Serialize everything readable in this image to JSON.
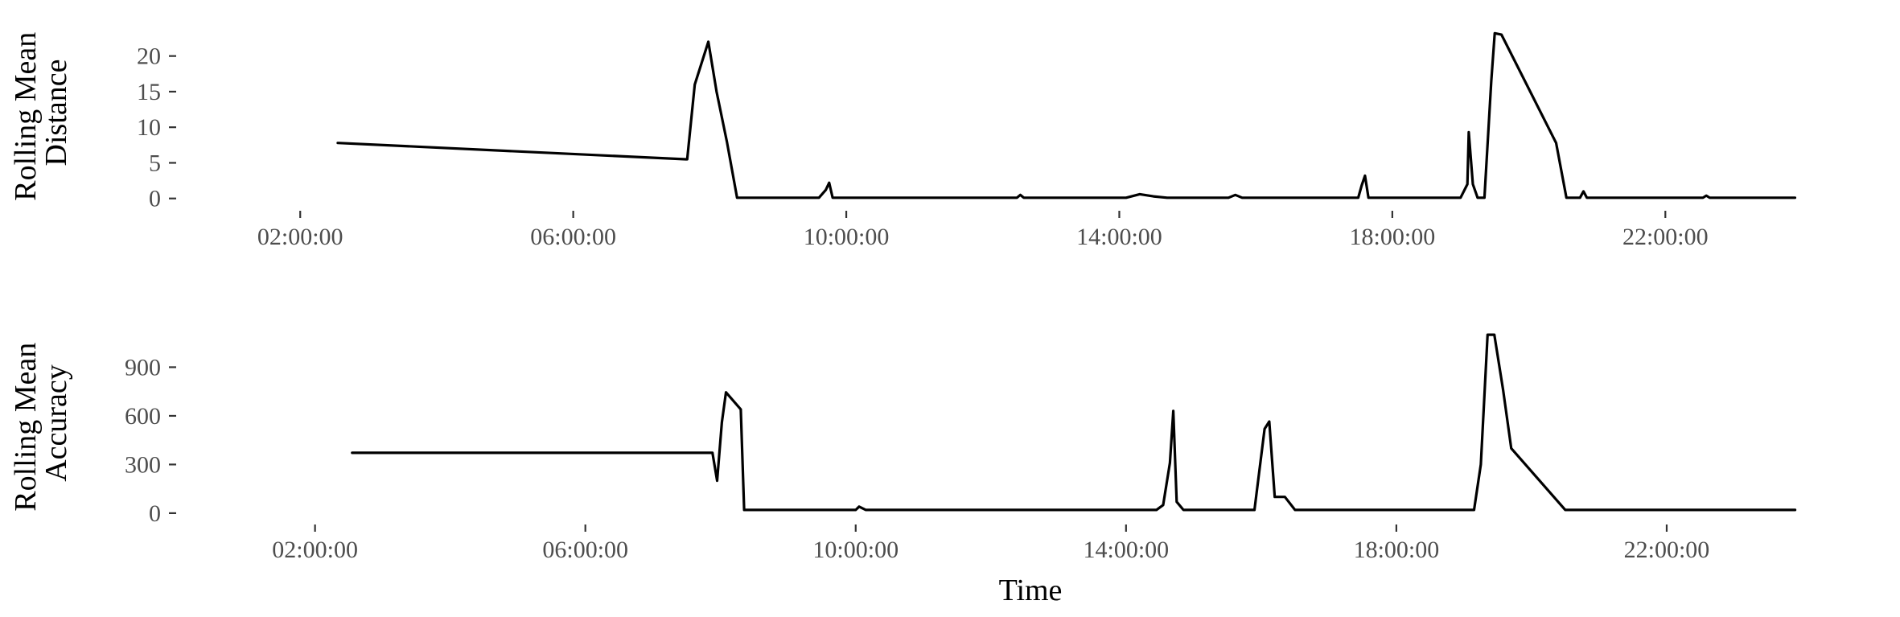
{
  "chart_data": [
    {
      "type": "line",
      "ylabel_lines": [
        "Rolling Mean",
        "Distance"
      ],
      "xlabel": "",
      "grid": false,
      "x_ticks": [
        "02:00:00",
        "06:00:00",
        "10:00:00",
        "14:00:00",
        "18:00:00",
        "22:00:00"
      ],
      "x_tick_hours": [
        2,
        6,
        10,
        14,
        18,
        22
      ],
      "xlim_hours": [
        0.1,
        24
      ],
      "ylim": [
        -1.5,
        23.8
      ],
      "y_ticks": [
        0,
        5,
        10,
        15,
        20
      ],
      "y_tick_labels": [
        "0",
        "5",
        "10",
        "15",
        "20"
      ],
      "series": [
        {
          "x_hours": [
            2.55,
            7.65,
            7.67,
            7.78,
            7.98,
            8.1,
            8.25,
            8.4,
            9.6,
            9.7,
            9.75,
            9.8,
            12.5,
            12.55,
            12.6,
            14.1,
            14.3,
            14.5,
            14.7,
            15.6,
            15.7,
            15.8,
            17.5,
            17.55,
            17.6,
            17.65,
            19.0,
            19.1,
            19.12,
            19.18,
            19.25,
            19.3,
            19.35,
            19.45,
            19.5,
            19.6,
            20.4,
            20.55,
            20.75,
            20.8,
            20.85,
            22.55,
            22.6,
            22.65,
            23.9
          ],
          "y": [
            7.8,
            5.5,
            5.5,
            16.0,
            22.0,
            15.0,
            8.0,
            0.1,
            0.1,
            1.2,
            2.2,
            0.1,
            0.1,
            0.5,
            0.1,
            0.1,
            0.6,
            0.3,
            0.1,
            0.1,
            0.5,
            0.1,
            0.1,
            1.8,
            3.2,
            0.1,
            0.1,
            2.0,
            9.3,
            2.0,
            0.1,
            0.1,
            0.1,
            16.5,
            23.2,
            23.0,
            7.8,
            0.1,
            0.1,
            1.0,
            0.1,
            0.1,
            0.4,
            0.1,
            0.1
          ]
        }
      ]
    },
    {
      "type": "line",
      "ylabel_lines": [
        "Rolling Mean",
        "Accuracy"
      ],
      "xlabel": "Time",
      "grid": false,
      "x_ticks": [
        "02:00:00",
        "06:00:00",
        "10:00:00",
        "14:00:00",
        "18:00:00",
        "22:00:00"
      ],
      "x_tick_hours": [
        2,
        6,
        10,
        14,
        18,
        22
      ],
      "xlim_hours": [
        0.1,
        24
      ],
      "ylim": [
        -60,
        1180
      ],
      "y_ticks": [
        0,
        300,
        600,
        900
      ],
      "y_tick_labels": [
        "0",
        "300",
        "600",
        "900"
      ],
      "series": [
        {
          "x_hours": [
            2.55,
            7.88,
            7.95,
            8.02,
            8.08,
            8.3,
            8.35,
            8.45,
            10.0,
            10.05,
            10.15,
            10.3,
            14.45,
            14.55,
            14.65,
            14.7,
            14.75,
            14.85,
            15.9,
            16.05,
            16.12,
            16.2,
            16.35,
            16.5,
            19.15,
            19.25,
            19.35,
            19.45,
            19.58,
            19.7,
            20.5,
            20.6,
            23.9
          ],
          "y": [
            372,
            372,
            200,
            560,
            745,
            640,
            20,
            20,
            20,
            40,
            20,
            20,
            20,
            50,
            310,
            630,
            70,
            20,
            20,
            520,
            565,
            100,
            100,
            20,
            20,
            300,
            1100,
            1100,
            760,
            400,
            20,
            20,
            20
          ]
        }
      ]
    }
  ]
}
